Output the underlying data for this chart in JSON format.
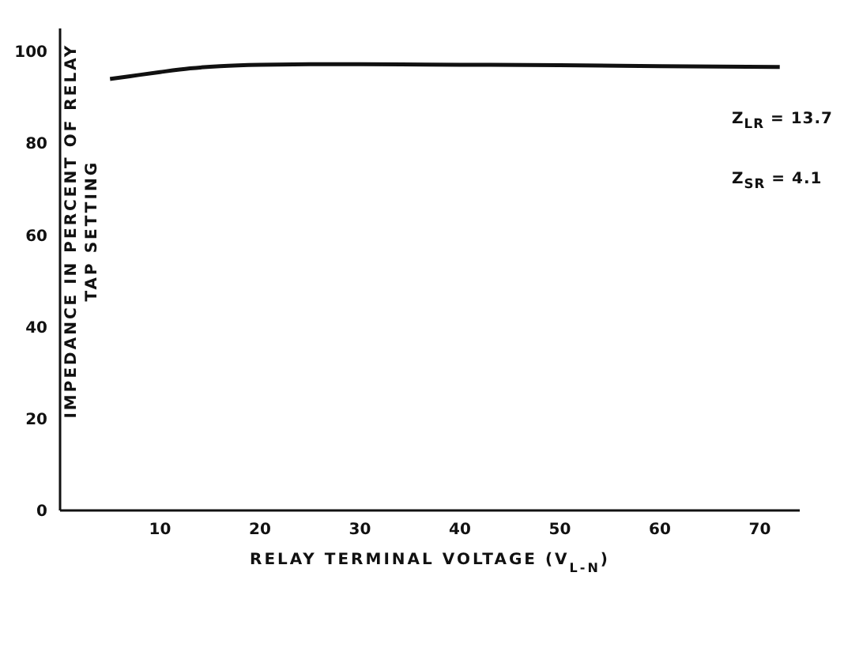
{
  "chart_data": {
    "type": "line",
    "xlabel": "RELAY TERMINAL VOLTAGE (V$_{L-N}$)",
    "ylabel": "IMPEDANCE IN PERCENT OF RELAY\nTAP SETTING",
    "x": [
      5,
      7,
      10,
      13,
      16,
      20,
      25,
      30,
      40,
      50,
      60,
      72
    ],
    "series": [
      {
        "color": "#111111",
        "values": [
          94,
          94.6,
          95.5,
          96.3,
          96.8,
          97.1,
          97.2,
          97.2,
          97.1,
          97,
          96.8,
          96.6
        ]
      }
    ],
    "xlim": [
      0,
      74
    ],
    "ylim": [
      0,
      105
    ],
    "xticks": [
      10,
      20,
      30,
      40,
      50,
      60,
      70
    ],
    "yticks": [
      0,
      20,
      40,
      60,
      80,
      100
    ],
    "grid": false,
    "legend": false,
    "marker": "none",
    "line_style": "solid",
    "annotations": [
      "Z$_{LR}$ = 13.7",
      "Z$_{SR}$ = 4.1"
    ]
  }
}
